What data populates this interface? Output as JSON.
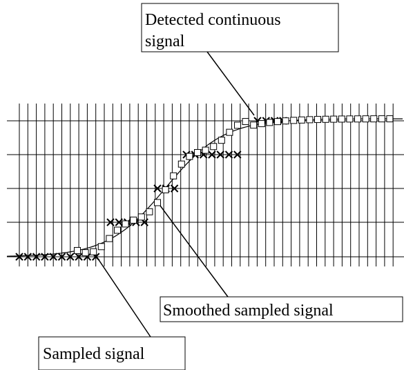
{
  "labels": {
    "detected": [
      "Detected continuous",
      "signal"
    ],
    "smoothed": "Smoothed sampled signal",
    "sampled": "Sampled signal"
  }
}
